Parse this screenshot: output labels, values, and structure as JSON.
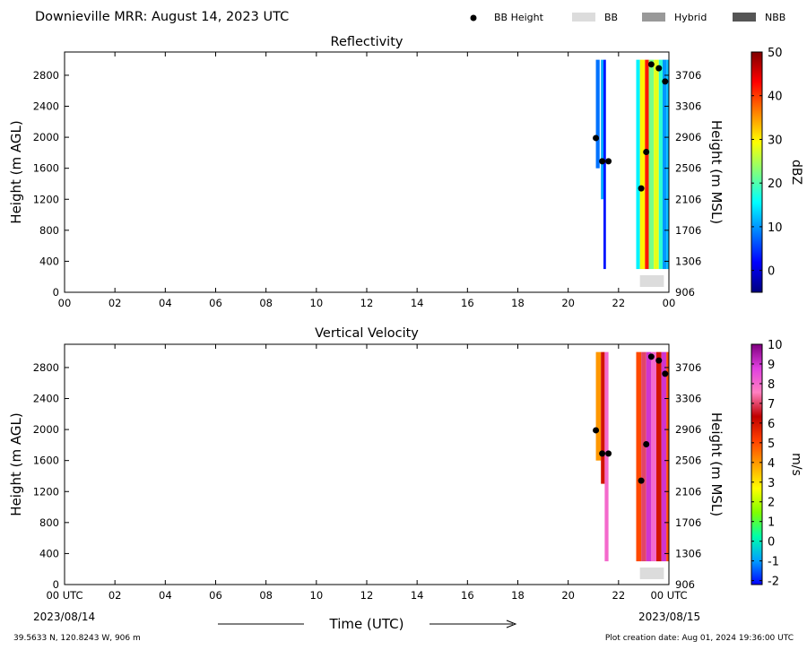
{
  "header": {
    "title": "Downieville MRR:  August 14, 2023 UTC",
    "legend": [
      {
        "label": "BB Height",
        "kind": "dot",
        "color": "#000000"
      },
      {
        "label": "BB",
        "kind": "box",
        "color": "#dcdcdc"
      },
      {
        "label": "Hybrid",
        "kind": "box",
        "color": "#999999"
      },
      {
        "label": "NBB",
        "kind": "box",
        "color": "#555555"
      }
    ]
  },
  "footer": {
    "location": "39.5633 N, 120.8243 W, 906 m",
    "created": "Plot creation date: Aug 01, 2024 19:36:00 UTC",
    "time_label": "Time (UTC)",
    "start_date": "2023/08/14",
    "end_date": "2023/08/15"
  },
  "chart_data": [
    {
      "type": "heatmap",
      "title": "Reflectivity",
      "xlabel": "",
      "ylabel": "Height (m AGL)",
      "ylabel_right": "Height (m MSL)",
      "xlim": [
        0,
        24
      ],
      "ylim": [
        0,
        3100
      ],
      "x_ticks": [
        "00",
        "02",
        "04",
        "06",
        "08",
        "10",
        "12",
        "14",
        "16",
        "18",
        "20",
        "22",
        "00"
      ],
      "y_ticks": [
        0,
        400,
        800,
        1200,
        1600,
        2000,
        2400,
        2800
      ],
      "y_ticks_right": [
        906,
        1306,
        1706,
        2106,
        2506,
        2906,
        3306,
        3706
      ],
      "colorbar": {
        "label": "dBZ",
        "min": -5,
        "max": 50,
        "ticks": [
          0,
          10,
          20,
          30,
          40,
          50
        ],
        "stops": [
          "#00007f",
          "#0000ff",
          "#0080ff",
          "#00ffff",
          "#7fff7f",
          "#ffff00",
          "#ff8000",
          "#ff0000",
          "#7f0000"
        ]
      },
      "data_blocks": [
        {
          "t_start": 21.1,
          "t_end": 21.25,
          "h_bottom": 1600,
          "h_top": 3000,
          "level": 8
        },
        {
          "t_start": 21.3,
          "t_end": 21.4,
          "h_bottom": 1200,
          "h_top": 3000,
          "level": 11
        },
        {
          "t_start": 21.4,
          "t_end": 21.5,
          "h_bottom": 300,
          "h_top": 3000,
          "level": 3
        },
        {
          "t_start": 22.7,
          "t_end": 22.85,
          "h_bottom": 300,
          "h_top": 3000,
          "level": 15
        },
        {
          "t_start": 22.85,
          "t_end": 23.05,
          "h_bottom": 300,
          "h_top": 3000,
          "level": 30
        },
        {
          "t_start": 23.05,
          "t_end": 23.2,
          "h_bottom": 300,
          "h_top": 3000,
          "level": 42
        },
        {
          "t_start": 23.2,
          "t_end": 23.4,
          "h_bottom": 300,
          "h_top": 3000,
          "level": 22
        },
        {
          "t_start": 23.4,
          "t_end": 23.6,
          "h_bottom": 300,
          "h_top": 3000,
          "level": 28
        },
        {
          "t_start": 23.6,
          "t_end": 23.75,
          "h_bottom": 300,
          "h_top": 3000,
          "level": 18
        },
        {
          "t_start": 23.75,
          "t_end": 23.9,
          "h_bottom": 300,
          "h_top": 3000,
          "level": 10
        },
        {
          "t_start": 23.9,
          "t_end": 24.0,
          "h_bottom": 300,
          "h_top": 3000,
          "level": 12
        }
      ],
      "bb_height": [
        {
          "t": 21.1,
          "h": 1990
        },
        {
          "t": 21.35,
          "h": 1690
        },
        {
          "t": 21.6,
          "h": 1690
        },
        {
          "t": 22.9,
          "h": 1340
        },
        {
          "t": 23.1,
          "h": 1810
        },
        {
          "t": 23.3,
          "h": 2940
        },
        {
          "t": 23.6,
          "h": 2890
        },
        {
          "t": 23.85,
          "h": 2720
        }
      ],
      "bb_class": [
        {
          "t_start": 22.85,
          "t_end": 23.8,
          "type": "BB"
        }
      ]
    },
    {
      "type": "heatmap",
      "title": "Vertical Velocity",
      "xlabel": "Time (UTC)",
      "ylabel": "Height (m AGL)",
      "ylabel_right": "Height (m MSL)",
      "xlim": [
        0,
        24
      ],
      "ylim": [
        0,
        3100
      ],
      "x_ticks": [
        "00 UTC",
        "02",
        "04",
        "06",
        "08",
        "10",
        "12",
        "14",
        "16",
        "18",
        "20",
        "22",
        "00 UTC"
      ],
      "y_ticks": [
        0,
        400,
        800,
        1200,
        1600,
        2000,
        2400,
        2800
      ],
      "y_ticks_right": [
        906,
        1306,
        1706,
        2106,
        2506,
        2906,
        3306,
        3706
      ],
      "colorbar": {
        "label": "m/s",
        "min": -2.2,
        "max": 10,
        "ticks": [
          -2,
          -1,
          0,
          1,
          2,
          3,
          4,
          5,
          6,
          7,
          8,
          9,
          10
        ],
        "stops": [
          "#0000ff",
          "#00a0ff",
          "#00ffaa",
          "#80ff00",
          "#ffff00",
          "#ffa000",
          "#ff4000",
          "#c00000",
          "#ff80c0",
          "#e040e0",
          "#800080"
        ]
      },
      "data_blocks": [
        {
          "t_start": 21.1,
          "t_end": 21.3,
          "h_bottom": 1600,
          "h_top": 3000,
          "level": 4
        },
        {
          "t_start": 21.3,
          "t_end": 21.45,
          "h_bottom": 1300,
          "h_top": 3000,
          "level": 6
        },
        {
          "t_start": 21.45,
          "t_end": 21.6,
          "h_bottom": 300,
          "h_top": 3000,
          "level": 8
        },
        {
          "t_start": 22.7,
          "t_end": 22.9,
          "h_bottom": 300,
          "h_top": 3000,
          "level": 5
        },
        {
          "t_start": 22.9,
          "t_end": 23.1,
          "h_bottom": 300,
          "h_top": 3000,
          "level": 7
        },
        {
          "t_start": 23.1,
          "t_end": 23.3,
          "h_bottom": 300,
          "h_top": 3000,
          "level": 9
        },
        {
          "t_start": 23.3,
          "t_end": 23.5,
          "h_bottom": 300,
          "h_top": 3000,
          "level": 8
        },
        {
          "t_start": 23.5,
          "t_end": 23.7,
          "h_bottom": 300,
          "h_top": 3000,
          "level": 6
        },
        {
          "t_start": 23.7,
          "t_end": 23.9,
          "h_bottom": 300,
          "h_top": 3000,
          "level": 9
        },
        {
          "t_start": 23.9,
          "t_end": 24.0,
          "h_bottom": 300,
          "h_top": 3000,
          "level": 5
        }
      ],
      "bb_height": [
        {
          "t": 21.1,
          "h": 1990
        },
        {
          "t": 21.35,
          "h": 1690
        },
        {
          "t": 21.6,
          "h": 1690
        },
        {
          "t": 22.9,
          "h": 1340
        },
        {
          "t": 23.1,
          "h": 1810
        },
        {
          "t": 23.3,
          "h": 2940
        },
        {
          "t": 23.6,
          "h": 2890
        },
        {
          "t": 23.85,
          "h": 2720
        }
      ],
      "bb_class": [
        {
          "t_start": 22.85,
          "t_end": 23.8,
          "type": "BB"
        }
      ]
    }
  ]
}
